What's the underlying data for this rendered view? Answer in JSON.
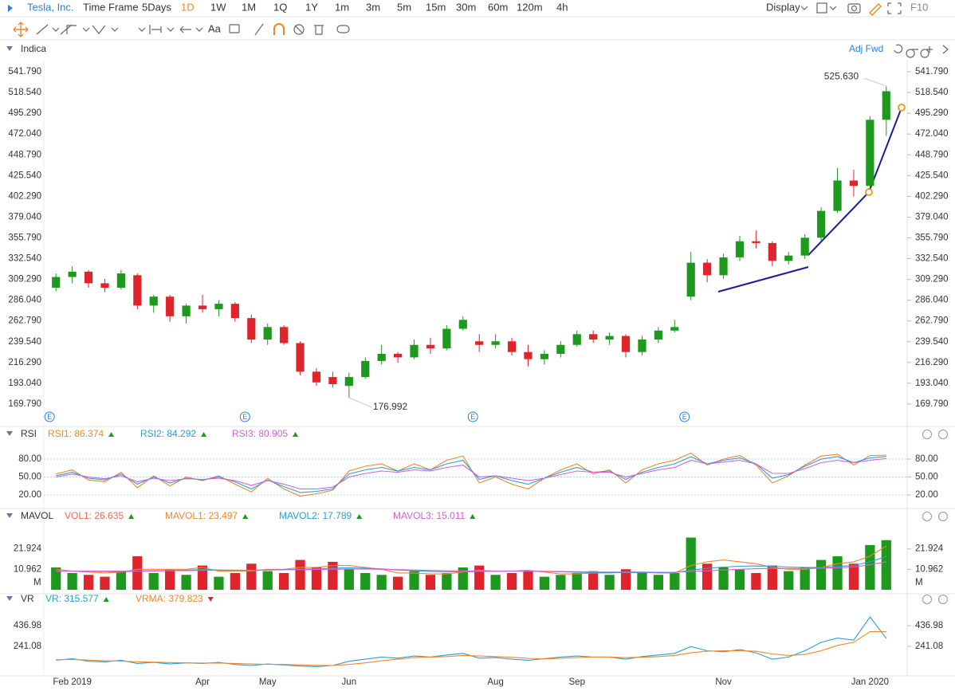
{
  "toolbar": {
    "symbol": "Tesla, Inc.",
    "time_frame": "Time Frame",
    "periods": [
      "5Days",
      "1D",
      "1W",
      "1M",
      "1Q",
      "1Y",
      "1m",
      "3m",
      "5m",
      "15m",
      "30m",
      "60m",
      "120m",
      "4h"
    ],
    "selected_period": 1,
    "display": "Display",
    "f10": "F10",
    "text_tool": "Aa",
    "adjust": "Adj Fwd"
  },
  "chart_data": [
    {
      "type": "candlestick",
      "title": "Indica",
      "up_color": "#1d9a1d",
      "down_color": "#e0242b",
      "ylim": [
        149.2,
        555.2
      ],
      "yticks": [
        {
          "value": 169.79,
          "label": "169.790"
        },
        {
          "value": 193.04,
          "label": "193.040"
        },
        {
          "value": 216.29,
          "label": "216.290"
        },
        {
          "value": 239.54,
          "label": "239.540"
        },
        {
          "value": 262.79,
          "label": "262.790"
        },
        {
          "value": 286.04,
          "label": "286.040"
        },
        {
          "value": 309.29,
          "label": "309.290"
        },
        {
          "value": 332.54,
          "label": "332.540"
        },
        {
          "value": 355.79,
          "label": "355.790"
        },
        {
          "value": 379.04,
          "label": "379.040"
        },
        {
          "value": 402.29,
          "label": "402.290"
        },
        {
          "value": 425.54,
          "label": "425.540"
        },
        {
          "value": 448.79,
          "label": "448.790"
        },
        {
          "value": 472.04,
          "label": "472.040"
        },
        {
          "value": 495.29,
          "label": "495.290"
        },
        {
          "value": 518.54,
          "label": "518.540"
        },
        {
          "value": 541.79,
          "label": "541.790"
        }
      ],
      "open": [
        300,
        312,
        318,
        305,
        300,
        314,
        280,
        290,
        268,
        280,
        276,
        282,
        266,
        242,
        256,
        238,
        206,
        200,
        190,
        200,
        218,
        226,
        222,
        236,
        232,
        254,
        240,
        236,
        240,
        228,
        220,
        226,
        236,
        248,
        242,
        246,
        228,
        242,
        252,
        290,
        328,
        314,
        334,
        352,
        350,
        330,
        336,
        356,
        386,
        420,
        414,
        488
      ],
      "high": [
        316,
        324,
        320,
        310,
        320,
        316,
        292,
        292,
        282,
        292,
        286,
        284,
        270,
        260,
        258,
        240,
        210,
        206,
        205,
        222,
        236,
        228,
        242,
        244,
        258,
        268,
        248,
        248,
        244,
        236,
        230,
        240,
        252,
        252,
        250,
        248,
        246,
        256,
        264,
        340,
        332,
        338,
        358,
        364,
        352,
        340,
        360,
        390,
        434,
        432,
        492,
        525.63
      ],
      "low": [
        296,
        305,
        300,
        295,
        298,
        276,
        272,
        262,
        260,
        272,
        268,
        262,
        238,
        236,
        236,
        202,
        190,
        188,
        176.992,
        198,
        214,
        216,
        220,
        226,
        230,
        252,
        228,
        232,
        224,
        212,
        214,
        222,
        234,
        238,
        236,
        222,
        224,
        238,
        250,
        286,
        306,
        310,
        330,
        344,
        324,
        326,
        332,
        352,
        384,
        402,
        410,
        470
      ],
      "close": [
        312,
        318,
        305,
        300,
        316,
        280,
        290,
        268,
        280,
        276,
        282,
        266,
        242,
        256,
        238,
        206,
        194,
        192,
        200,
        218,
        226,
        222,
        236,
        232,
        254,
        264,
        236,
        240,
        228,
        220,
        226,
        236,
        248,
        242,
        246,
        228,
        242,
        252,
        256,
        328,
        314,
        334,
        352,
        350,
        330,
        336,
        356,
        386,
        420,
        414,
        488,
        520
      ],
      "high_label": "525.630",
      "low_label": "176.992",
      "events": [
        "E",
        null,
        null,
        null,
        null,
        null,
        null,
        null,
        null,
        null,
        null,
        null,
        "E",
        null,
        null,
        null,
        null,
        null,
        null,
        null,
        null,
        null,
        null,
        null,
        null,
        null,
        "E",
        null,
        null,
        null,
        null,
        null,
        null,
        null,
        null,
        null,
        null,
        null,
        null,
        "E",
        null,
        null,
        null,
        null,
        null,
        null,
        null,
        null,
        null,
        null,
        null,
        null
      ]
    },
    {
      "type": "line",
      "title": "RSI",
      "ylim": [
        5.3,
        104
      ],
      "grid": true,
      "yticks": [
        {
          "value": 20,
          "label": "20.00"
        },
        {
          "value": 50,
          "label": "50.00"
        },
        {
          "value": 80,
          "label": "80.00"
        }
      ],
      "series": [
        {
          "name": "RSI1: 86.374",
          "color": "#f0872a",
          "trend": "up",
          "values": [
            55,
            62,
            45,
            42,
            58,
            32,
            52,
            35,
            50,
            44,
            52,
            38,
            25,
            48,
            30,
            18,
            22,
            28,
            60,
            68,
            72,
            60,
            72,
            62,
            78,
            85,
            40,
            50,
            38,
            30,
            48,
            62,
            72,
            55,
            62,
            40,
            62,
            72,
            78,
            90,
            70,
            80,
            86,
            70,
            40,
            52,
            70,
            85,
            88,
            70,
            86,
            86.374
          ]
        },
        {
          "name": "RSI2: 84.292",
          "color": "#2a9fd6",
          "trend": "up",
          "values": [
            52,
            58,
            48,
            45,
            55,
            38,
            50,
            40,
            48,
            45,
            50,
            42,
            30,
            45,
            34,
            24,
            26,
            30,
            55,
            62,
            66,
            60,
            66,
            62,
            72,
            78,
            46,
            52,
            44,
            38,
            48,
            58,
            66,
            58,
            60,
            46,
            58,
            66,
            72,
            84,
            72,
            78,
            82,
            72,
            48,
            54,
            68,
            80,
            84,
            74,
            82,
            84.292
          ]
        },
        {
          "name": "RSI3: 80.905",
          "color": "#d55fd6",
          "trend": "up",
          "values": [
            50,
            55,
            50,
            47,
            52,
            42,
            48,
            44,
            47,
            46,
            48,
            44,
            36,
            44,
            38,
            30,
            30,
            33,
            50,
            56,
            60,
            58,
            62,
            60,
            66,
            70,
            50,
            52,
            48,
            44,
            48,
            54,
            60,
            58,
            58,
            50,
            56,
            62,
            66,
            78,
            72,
            75,
            78,
            72,
            56,
            56,
            64,
            74,
            78,
            74,
            78,
            80.905
          ]
        }
      ]
    },
    {
      "type": "bar",
      "title": "MAVOL",
      "unit_label": "M",
      "ylim": [
        0,
        34.2
      ],
      "yticks": [
        10.962,
        21.924
      ],
      "series": [
        {
          "name": "VOL1: 26.635",
          "color": "#e86a5a",
          "style": "bar",
          "trend": "up",
          "values": [
            12,
            9,
            8,
            7,
            10,
            18,
            9,
            11,
            8,
            13,
            7,
            9,
            14,
            10,
            9,
            16,
            12,
            15,
            11,
            9,
            8,
            7,
            10,
            8,
            9,
            12,
            13,
            8,
            9,
            10,
            7,
            8,
            9,
            10,
            8,
            11,
            9,
            8,
            9,
            28,
            14,
            12,
            11,
            9,
            13,
            10,
            12,
            16,
            18,
            14,
            24,
            26.635
          ]
        },
        {
          "name": "MAVOL1: 23.497",
          "color": "#f0872a",
          "trend": "up",
          "values": [
            11,
            10,
            9.5,
            9,
            9.5,
            11,
            11,
            11,
            11,
            12,
            10,
            10,
            10,
            11,
            11,
            12,
            12,
            13,
            13,
            12,
            11,
            9,
            9,
            8.5,
            8.5,
            9.5,
            10.5,
            10,
            10,
            10.5,
            9.5,
            8.5,
            8.5,
            9,
            9,
            9.5,
            9.5,
            9,
            9,
            13,
            15,
            16,
            15,
            14,
            12,
            11,
            11,
            12,
            14,
            15,
            18,
            23.497
          ]
        },
        {
          "name": "MAVOL2: 17.789",
          "color": "#2a9fd6",
          "trend": "up",
          "values": [
            10,
            10,
            10,
            9.8,
            9.6,
            10,
            10.2,
            10.4,
            10.5,
            10.8,
            10.6,
            10.5,
            10.4,
            10.6,
            10.8,
            11,
            11.3,
            11.6,
            11.8,
            11.6,
            11.2,
            10.6,
            10.2,
            9.8,
            9.6,
            9.6,
            9.8,
            10,
            10,
            10,
            9.8,
            9.6,
            9.4,
            9.2,
            9.2,
            9.2,
            9.2,
            9.2,
            9.2,
            10.5,
            11.5,
            12.2,
            12.6,
            12.8,
            12.6,
            12.2,
            12,
            12,
            12.5,
            13,
            15,
            17.789
          ]
        },
        {
          "name": "MAVOL3: 15.011",
          "color": "#d55fd6",
          "trend": "up",
          "values": [
            10,
            10,
            10,
            10,
            10,
            10,
            10.1,
            10.2,
            10.3,
            10.4,
            10.5,
            10.5,
            10.5,
            10.6,
            10.7,
            10.8,
            10.9,
            11,
            11.1,
            11.1,
            11,
            10.8,
            10.6,
            10.4,
            10.2,
            10.1,
            10,
            10,
            10,
            10,
            9.9,
            9.8,
            9.7,
            9.6,
            9.5,
            9.5,
            9.5,
            9.4,
            9.4,
            9.8,
            10.2,
            10.6,
            11,
            11.3,
            11.4,
            11.4,
            11.4,
            11.5,
            11.8,
            12.2,
            13.5,
            15.011
          ]
        }
      ]
    },
    {
      "type": "line",
      "title": "VR",
      "ylim": [
        -15,
        588
      ],
      "yticks": [
        241.08,
        436.98
      ],
      "categories": [
        null,
        "Feb 2019",
        null,
        null,
        null,
        null,
        null,
        null,
        null,
        "Apr",
        null,
        null,
        null,
        "May",
        null,
        null,
        null,
        null,
        "Jun",
        null,
        null,
        null,
        null,
        null,
        null,
        null,
        null,
        "Aug",
        null,
        null,
        null,
        null,
        "Sep",
        null,
        null,
        null,
        null,
        null,
        null,
        null,
        null,
        "Nov",
        null,
        null,
        null,
        null,
        null,
        null,
        null,
        null,
        "Jan 2020",
        null
      ],
      "series": [
        {
          "name": "VR: 315.577",
          "color": "#2a9fd6",
          "trend": "up",
          "values": [
            110,
            125,
            100,
            95,
            110,
            80,
            90,
            75,
            85,
            80,
            90,
            70,
            60,
            75,
            65,
            55,
            50,
            60,
            100,
            120,
            140,
            130,
            150,
            140,
            160,
            175,
            130,
            135,
            120,
            110,
            125,
            140,
            150,
            140,
            140,
            120,
            145,
            160,
            175,
            240,
            200,
            190,
            210,
            180,
            120,
            140,
            200,
            280,
            320,
            300,
            520,
            315.577
          ]
        },
        {
          "name": "VRMA: 379.823",
          "color": "#f0872a",
          "trend": "down",
          "values": [
            115,
            118,
            112,
            105,
            102,
            95,
            92,
            88,
            85,
            84,
            84,
            80,
            75,
            72,
            70,
            66,
            62,
            60,
            70,
            85,
            105,
            120,
            135,
            140,
            145,
            155,
            150,
            145,
            138,
            128,
            122,
            128,
            135,
            140,
            140,
            135,
            138,
            145,
            155,
            180,
            195,
            200,
            200,
            195,
            170,
            155,
            165,
            200,
            250,
            280,
            380,
            379.823
          ]
        }
      ]
    }
  ]
}
